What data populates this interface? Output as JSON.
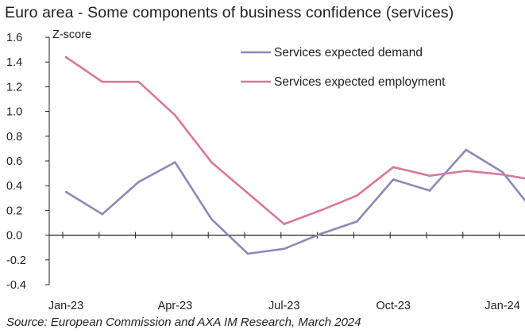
{
  "title": "Euro area - Some components of business confidence (services)",
  "source": "Source: European Commission and AXA IM Research, March 2024",
  "chart_data": {
    "type": "line",
    "title": "Euro area - Some components of business confidence (services)",
    "ylabel": "Z-score",
    "xlabel": "",
    "ylim": [
      -0.4,
      1.6
    ],
    "yticks": [
      -0.4,
      -0.2,
      0.0,
      0.2,
      0.4,
      0.6,
      0.8,
      1.0,
      1.2,
      1.4,
      1.6
    ],
    "ytick_labels": [
      "-0.4",
      "-0.2",
      "0.0",
      "0.2",
      "0.4",
      "0.6",
      "0.8",
      "1.0",
      "1.2",
      "1.4",
      "1.6"
    ],
    "x": [
      "Jan-23",
      "Feb-23",
      "Mar-23",
      "Apr-23",
      "May-23",
      "Jun-23",
      "Jul-23",
      "Aug-23",
      "Sep-23",
      "Oct-23",
      "Nov-23",
      "Dec-23",
      "Jan-24",
      "Feb-24"
    ],
    "xtick_labels": [
      {
        "index": 0,
        "label": "Jan-23"
      },
      {
        "index": 3,
        "label": "Apr-23"
      },
      {
        "index": 6,
        "label": "Jul-23"
      },
      {
        "index": 9,
        "label": "Oct-23"
      },
      {
        "index": 12,
        "label": "Jan-24"
      }
    ],
    "series": [
      {
        "name": "Services expected demand",
        "color": "#8c88b8",
        "values": [
          0.35,
          0.17,
          0.43,
          0.59,
          0.13,
          -0.15,
          -0.11,
          0.01,
          0.11,
          0.45,
          0.36,
          0.69,
          0.51,
          0.14
        ]
      },
      {
        "name": "Services expected employment",
        "color": "#d9779a",
        "values": [
          1.44,
          1.24,
          1.24,
          0.97,
          0.59,
          0.34,
          0.09,
          0.2,
          0.32,
          0.55,
          0.48,
          0.52,
          0.49,
          0.44
        ]
      }
    ],
    "legend_position": "top-right",
    "grid": false
  }
}
